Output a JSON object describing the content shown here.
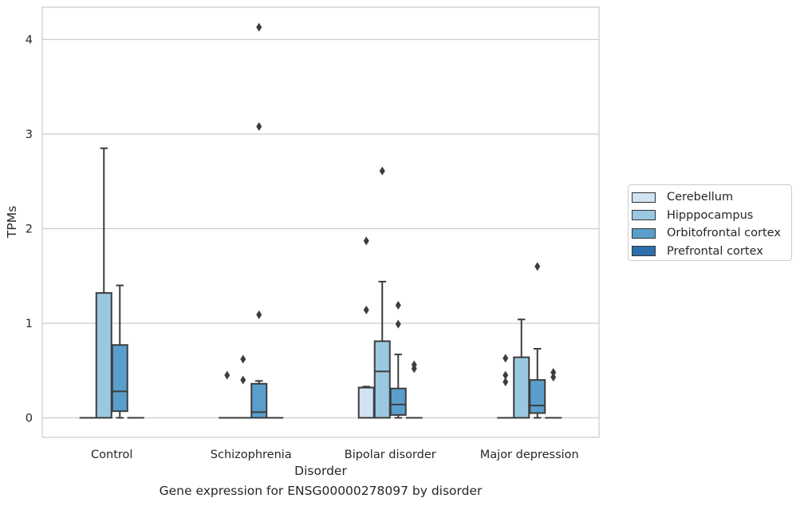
{
  "chart_data": {
    "type": "box",
    "xlabel": "Disorder",
    "ylabel": "TPMs",
    "caption": "Gene expression for ENSG00000278097 by disorder",
    "ylim": [
      -0.2,
      4.33
    ],
    "yticks": [
      0,
      1,
      2,
      3,
      4
    ],
    "grid": "horizontal",
    "legend_position": "right",
    "categories": [
      "Control",
      "Schizophrenia",
      "Bipolar disorder",
      "Major depression"
    ],
    "series": [
      {
        "name": "Cerebellum",
        "color": "#d1e2f2"
      },
      {
        "name": "Hipppocampus",
        "color": "#9ac8e0"
      },
      {
        "name": "Orbitofrontal cortex",
        "color": "#5a9fcc"
      },
      {
        "name": "Prefrontal cortex",
        "color": "#2e6eab"
      }
    ],
    "boxes": [
      [
        {
          "q1": 0,
          "median": 0,
          "q3": 0,
          "whisker_low": 0,
          "whisker_high": 0,
          "outliers": []
        },
        {
          "q1": 0,
          "median": 0,
          "q3": 1.32,
          "whisker_low": 0,
          "whisker_high": 2.85,
          "outliers": []
        },
        {
          "q1": 0.07,
          "median": 0.28,
          "q3": 0.77,
          "whisker_low": 0,
          "whisker_high": 1.4,
          "outliers": []
        },
        {
          "q1": 0,
          "median": 0,
          "q3": 0,
          "whisker_low": 0,
          "whisker_high": 0,
          "outliers": []
        }
      ],
      [
        {
          "q1": 0,
          "median": 0,
          "q3": 0,
          "whisker_low": 0,
          "whisker_high": 0,
          "outliers": [
            0.45
          ]
        },
        {
          "q1": 0,
          "median": 0,
          "q3": 0,
          "whisker_low": 0,
          "whisker_high": 0,
          "outliers": [
            0.62,
            0.4
          ]
        },
        {
          "q1": 0,
          "median": 0.06,
          "q3": 0.36,
          "whisker_low": 0,
          "whisker_high": 0.39,
          "outliers": [
            4.13,
            3.08,
            1.09
          ]
        },
        {
          "q1": 0,
          "median": 0,
          "q3": 0,
          "whisker_low": 0,
          "whisker_high": 0,
          "outliers": []
        }
      ],
      [
        {
          "q1": 0,
          "median": 0.32,
          "q3": 0.32,
          "whisker_low": 0,
          "whisker_high": 0.33,
          "outliers": [
            1.87,
            1.14
          ]
        },
        {
          "q1": 0,
          "median": 0.49,
          "q3": 0.81,
          "whisker_low": 0,
          "whisker_high": 1.44,
          "outliers": [
            2.61
          ]
        },
        {
          "q1": 0.03,
          "median": 0.14,
          "q3": 0.31,
          "whisker_low": 0,
          "whisker_high": 0.67,
          "outliers": [
            1.19,
            0.99
          ]
        },
        {
          "q1": 0,
          "median": 0,
          "q3": 0,
          "whisker_low": 0,
          "whisker_high": 0,
          "outliers": [
            0.56,
            0.52
          ]
        }
      ],
      [
        {
          "q1": 0,
          "median": 0,
          "q3": 0,
          "whisker_low": 0,
          "whisker_high": 0,
          "outliers": [
            0.63,
            0.45,
            0.38
          ]
        },
        {
          "q1": 0,
          "median": 0,
          "q3": 0.64,
          "whisker_low": 0,
          "whisker_high": 1.04,
          "outliers": []
        },
        {
          "q1": 0.05,
          "median": 0.13,
          "q3": 0.4,
          "whisker_low": 0,
          "whisker_high": 0.73,
          "outliers": [
            1.6
          ]
        },
        {
          "q1": 0,
          "median": 0,
          "q3": 0,
          "whisker_low": 0,
          "whisker_high": 0,
          "outliers": [
            0.48,
            0.43
          ]
        }
      ]
    ]
  }
}
